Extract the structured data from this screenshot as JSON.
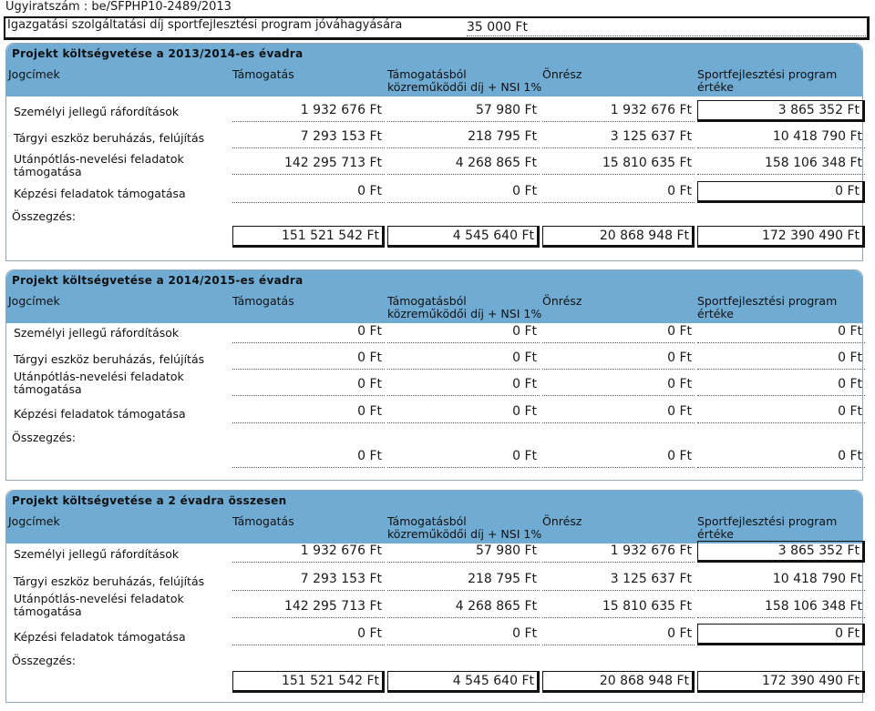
{
  "header": {
    "case_number": "Ügyiratszám : be/SFPHP10-2489/2013",
    "approval_label": "Igazgatási szolgáltatási díj sportfejlesztési program jóváhagyására",
    "approval_value": "35 000 Ft"
  },
  "columns": {
    "jogcimek": "Jogcímek",
    "tamogatas": "Támogatás",
    "kozremukodoi_1": "Támogatásból",
    "kozremukodoi_2": "közreműködői díj + NSI 1%",
    "onresz": "Önrész",
    "program_1": "Sportfejlesztési program",
    "program_2": "értéke"
  },
  "row_labels": {
    "r1": "Személyi jellegű ráfordítások",
    "r2": "Tárgyi eszköz beruházás, felújítás",
    "r3a": "Utánpótlás-nevelési feladatok",
    "r3b": "támogatása",
    "r4": "Képzési feladatok támogatása"
  },
  "summary_label": "Összegzés:",
  "sections": [
    {
      "title": "Projekt költségvetése a 2013/2014-es évadra",
      "rows": [
        [
          "1 932 676 Ft",
          "57 980 Ft",
          "1 932 676 Ft",
          "3 865 352 Ft"
        ],
        [
          "7 293 153 Ft",
          "218 795 Ft",
          "3 125 637 Ft",
          "10 418 790 Ft"
        ],
        [
          "142 295 713 Ft",
          "4 268 865 Ft",
          "15 810 635 Ft",
          "158 106 348 Ft"
        ],
        [
          "0 Ft",
          "0 Ft",
          "0 Ft",
          "0 Ft"
        ]
      ],
      "summary": [
        "151 521 542 Ft",
        "4 545 640 Ft",
        "20 868 948 Ft",
        "172 390 490 Ft"
      ]
    },
    {
      "title": "Projekt költségvetése a 2014/2015-es évadra",
      "rows": [
        [
          "0 Ft",
          "0 Ft",
          "0 Ft",
          "0 Ft"
        ],
        [
          "0 Ft",
          "0 Ft",
          "0 Ft",
          "0 Ft"
        ],
        [
          "0 Ft",
          "0 Ft",
          "0 Ft",
          "0 Ft"
        ],
        [
          "0 Ft",
          "0 Ft",
          "0 Ft",
          "0 Ft"
        ]
      ],
      "summary": [
        "0 Ft",
        "0 Ft",
        "0 Ft",
        "0 Ft"
      ]
    },
    {
      "title": "Projekt költségvetése a 2 évadra összesen",
      "rows": [
        [
          "1 932 676 Ft",
          "57 980 Ft",
          "1 932 676 Ft",
          "3 865 352 Ft"
        ],
        [
          "7 293 153 Ft",
          "218 795 Ft",
          "3 125 637 Ft",
          "10 418 790 Ft"
        ],
        [
          "142 295 713 Ft",
          "4 268 865 Ft",
          "15 810 635 Ft",
          "158 106 348 Ft"
        ],
        [
          "0 Ft",
          "0 Ft",
          "0 Ft",
          "0 Ft"
        ]
      ],
      "summary": [
        "151 521 542 Ft",
        "4 545 640 Ft",
        "20 868 948 Ft",
        "172 390 490 Ft"
      ]
    }
  ]
}
